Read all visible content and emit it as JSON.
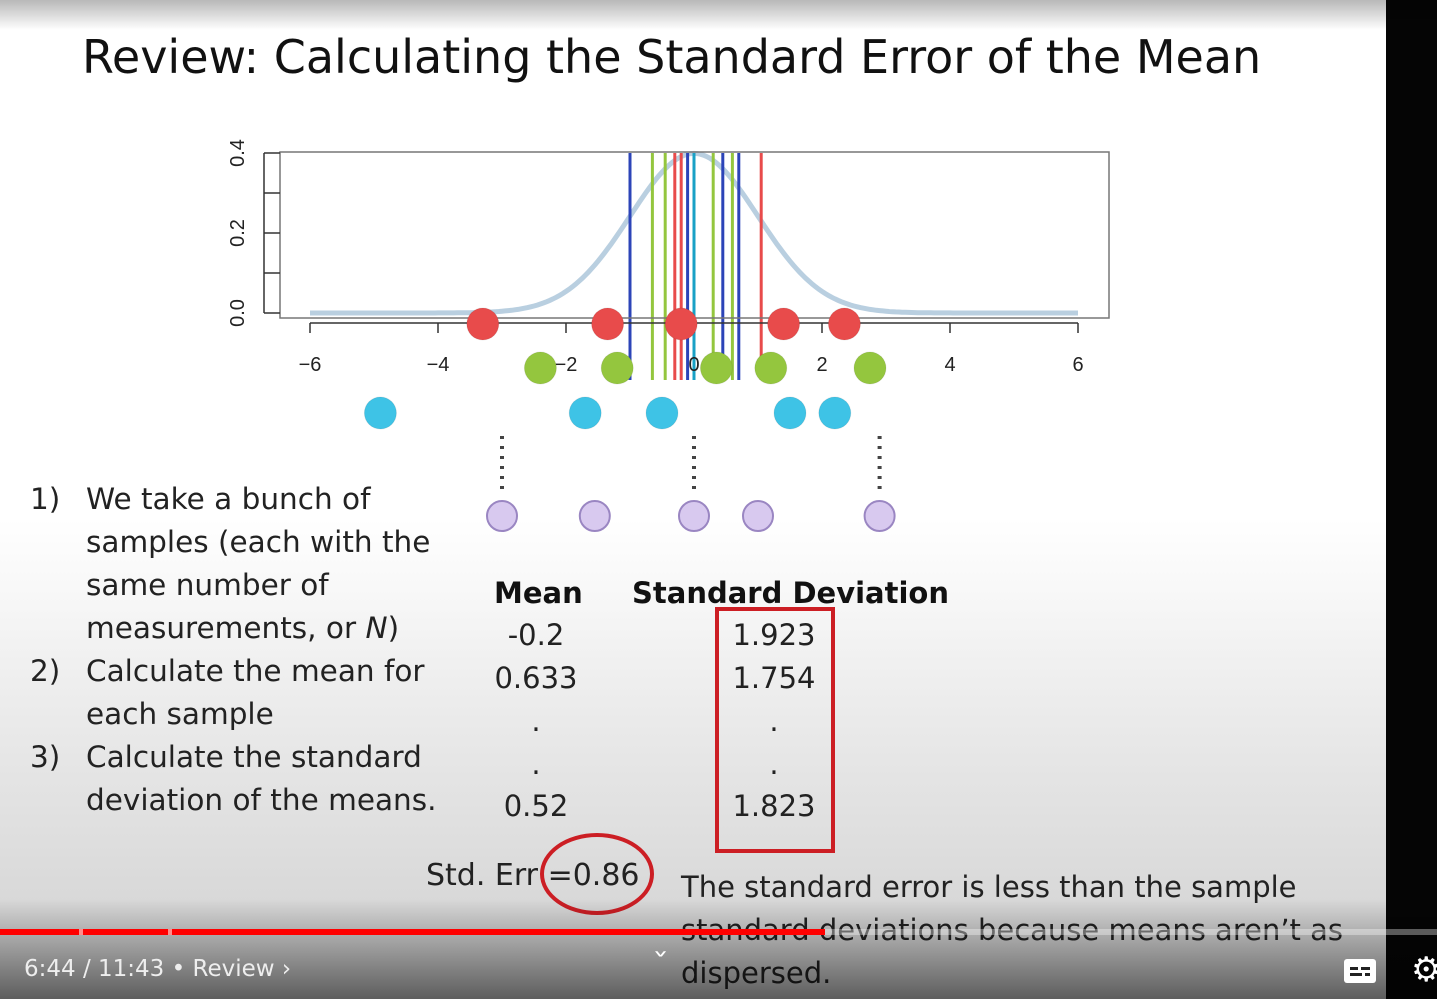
{
  "slide": {
    "title": "Review: Calculating the Standard Error of the Mean",
    "steps": [
      {
        "num": "1)",
        "text_parts": [
          "We take a bunch of samples (each with the same number of measurements, or ",
          "N",
          ")"
        ]
      },
      {
        "num": "2)",
        "text": "Calculate the mean for each sample"
      },
      {
        "num": "3)",
        "text": "Calculate the standard deviation of the means."
      }
    ],
    "table": {
      "mean_header": "Mean",
      "sd_header": "Standard Deviation",
      "rows": [
        {
          "mean": "-0.2",
          "sd": "1.923"
        },
        {
          "mean": "0.633",
          "sd": "1.754"
        },
        {
          "mean": ".",
          "sd": "."
        },
        {
          "mean": ".",
          "sd": "."
        },
        {
          "mean": "0.52",
          "sd": "1.823"
        }
      ]
    },
    "std_err_label": "Std. Err",
    "std_err_eq": "=",
    "std_err_value": "0.86",
    "note": "The standard error is less than the sample standard deviations because means aren’t as dispersed.",
    "colors": {
      "red": "#e84b4b",
      "green": "#94c63e",
      "blue_dot": "#3ec3e6",
      "purple": "#d8c9ef",
      "mean_line_blue": "#2c44b8",
      "mean_line_red": "#e84b4b",
      "mean_line_green": "#94c63e",
      "mean_line_cyan": "#19a1c6",
      "curve": "#b9cfe0",
      "highlight": "#cc1e24"
    }
  },
  "chart_data": {
    "type": "scatter",
    "description_curve": "normal density, mean 0, sd 1",
    "xlim": [
      -6,
      6
    ],
    "ylim": [
      0,
      0.4
    ],
    "x_ticks": [
      "-6",
      "-4",
      "-2",
      "0",
      "2",
      "4",
      "6"
    ],
    "y_ticks": [
      "0.0",
      "0.2",
      "0.4"
    ],
    "series": [
      {
        "color": "red",
        "x": [
          -3.3,
          -1.35,
          -0.2,
          1.4,
          2.35
        ]
      },
      {
        "color": "green",
        "x": [
          -2.4,
          -1.2,
          0.35,
          1.2,
          2.75
        ]
      },
      {
        "color": "cyan",
        "x": [
          -4.9,
          -1.7,
          -0.5,
          1.5,
          2.2
        ]
      }
    ],
    "mean_lines": [
      {
        "color": "blue",
        "x": -1.0
      },
      {
        "color": "green",
        "x": -0.65
      },
      {
        "color": "green",
        "x": -0.45
      },
      {
        "color": "red",
        "x": -0.3
      },
      {
        "color": "red",
        "x": -0.2
      },
      {
        "color": "blue",
        "x": -0.1
      },
      {
        "color": "cyan",
        "x": 0.0
      },
      {
        "color": "green",
        "x": 0.3
      },
      {
        "color": "blue",
        "x": 0.45
      },
      {
        "color": "green",
        "x": 0.6
      },
      {
        "color": "blue",
        "x": 0.7
      },
      {
        "color": "red",
        "x": 1.05
      }
    ],
    "means_row": [
      -3.0,
      -1.55,
      0.0,
      1.0,
      2.9
    ],
    "dotted_connectors": [
      -3.0,
      0.0,
      2.9
    ]
  },
  "player": {
    "current_time": "6:44",
    "separator": "/",
    "duration": "11:43",
    "bullet": "•",
    "chapter": "Review",
    "chapter_chevron": "›",
    "progress_fraction": 0.574,
    "expand_icon": "˅",
    "gear_icon": "⚙"
  }
}
